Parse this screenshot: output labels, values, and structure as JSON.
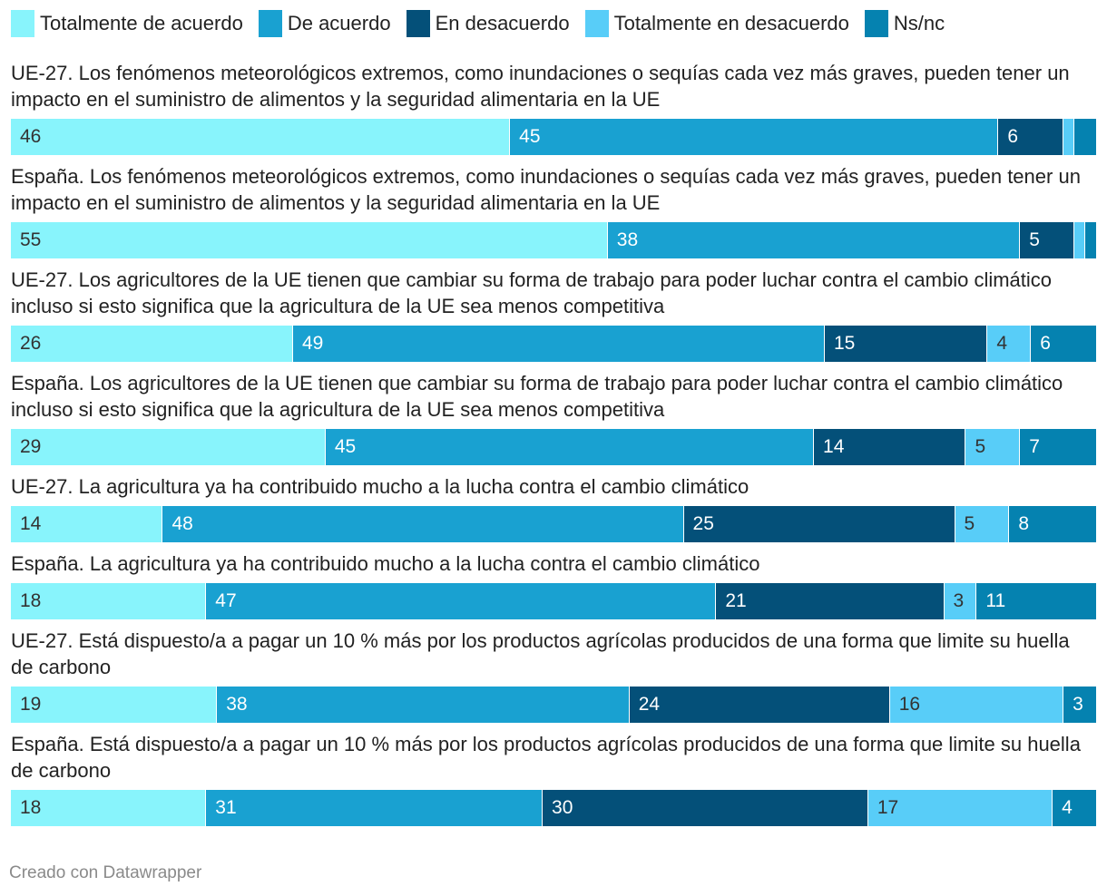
{
  "chart_data": {
    "type": "bar",
    "orientation": "horizontal-stacked-100",
    "legend": {
      "placement": "top",
      "items": [
        {
          "name": "Totalmente de acuerdo",
          "color": "#88f4fc"
        },
        {
          "name": "De acuerdo",
          "color": "#19a1d1"
        },
        {
          "name": "En desacuerdo",
          "color": "#045079"
        },
        {
          "name": "Totalmente en desacuerdo",
          "color": "#58cdf8"
        },
        {
          "name": "Ns/nc",
          "color": "#0582b0"
        }
      ]
    },
    "label_colors": [
      "#333333",
      "#ffffff",
      "#ffffff",
      "#333333",
      "#ffffff"
    ],
    "series": [
      {
        "name": "Totalmente de acuerdo",
        "values": [
          46,
          55,
          26,
          29,
          14,
          18,
          19,
          18
        ]
      },
      {
        "name": "De acuerdo",
        "values": [
          45,
          38,
          49,
          45,
          48,
          47,
          38,
          31
        ]
      },
      {
        "name": "En desacuerdo",
        "values": [
          6,
          5,
          15,
          14,
          25,
          21,
          24,
          30
        ]
      },
      {
        "name": "Totalmente en desacuerdo",
        "values": [
          1,
          1,
          4,
          5,
          5,
          3,
          16,
          17
        ]
      },
      {
        "name": "Ns/nc",
        "values": [
          2,
          1,
          6,
          7,
          8,
          11,
          3,
          4
        ]
      }
    ],
    "value_labels": [
      [
        "46",
        "45",
        "6",
        "",
        ""
      ],
      [
        "55",
        "38",
        "5",
        "",
        ""
      ],
      [
        "26",
        "49",
        "15",
        "4",
        "6"
      ],
      [
        "29",
        "45",
        "14",
        "5",
        "7"
      ],
      [
        "14",
        "48",
        "25",
        "5",
        "8"
      ],
      [
        "18",
        "47",
        "21",
        "3",
        "11"
      ],
      [
        "19",
        "38",
        "24",
        "16",
        "3"
      ],
      [
        "18",
        "31",
        "30",
        "17",
        "4"
      ]
    ],
    "categories": [
      "UE-27. Los fenómenos meteorológicos extremos, como inundaciones o sequías cada vez más graves, pueden tener un impacto en el suministro de alimentos y la seguridad alimentaria en la UE",
      "España. Los fenómenos meteorológicos extremos, como inundaciones o sequías cada vez más graves, pueden tener un impacto en el suministro de alimentos y la seguridad alimentaria en la UE",
      "UE-27. Los agricultores de la UE tienen que cambiar su forma de trabajo para poder luchar contra el cambio climático incluso si esto significa que la agricultura de la UE sea menos competitiva",
      "España. Los agricultores de la UE tienen que cambiar su forma de trabajo para poder luchar contra el cambio climático incluso si esto significa que la agricultura de la UE sea menos competitiva",
      "UE-27. La agricultura ya ha contribuido mucho a la lucha contra el cambio climático",
      "España. La agricultura ya ha contribuido mucho a la lucha contra el cambio climático",
      "UE-27. Está dispuesto/a a pagar un 10 % más por los productos agrícolas producidos de una forma que limite su huella de carbono",
      "España. Está dispuesto/a a pagar un 10 % más por los productos agrícolas producidos de una forma que limite su huella de carbono"
    ],
    "xlim": [
      0,
      100
    ]
  },
  "footer": {
    "credit": "Creado con Datawrapper"
  }
}
